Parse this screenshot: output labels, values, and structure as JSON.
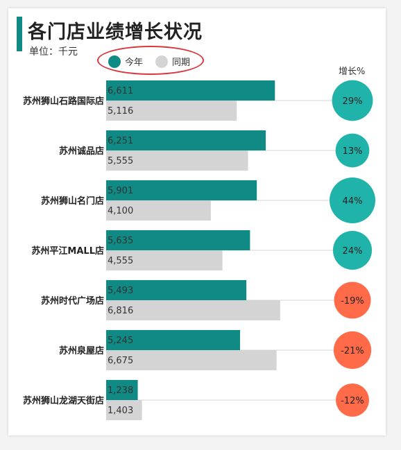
{
  "title": "各门店业绩增长状况",
  "unit": "单位：千元",
  "legend": {
    "current_label": "今年",
    "previous_label": "同期"
  },
  "growth_header": "增长%",
  "colors": {
    "current": "#0f8a84",
    "previous": "#d4d4d4",
    "positive": "#1fb3a9",
    "negative": "#ff6a48",
    "legend_oval": "#d9363e"
  },
  "chart_data": {
    "type": "bar",
    "orientation": "horizontal",
    "categories": [
      "苏州狮山石路国际店",
      "苏州诚品店",
      "苏州狮山名门店",
      "苏州平江MALL店",
      "苏州时代广场店",
      "苏州泉屋店",
      "苏州狮山龙湖天街店"
    ],
    "series": [
      {
        "name": "今年",
        "values": [
          6611,
          6251,
          5901,
          5635,
          5493,
          5245,
          1238
        ]
      },
      {
        "name": "同期",
        "values": [
          5116,
          5555,
          4100,
          4555,
          6816,
          6675,
          1403
        ]
      }
    ],
    "value_labels": {
      "current": [
        "6,611",
        "6,251",
        "5,901",
        "5,635",
        "5,493",
        "5,245",
        "1,238"
      ],
      "previous": [
        "5,116",
        "5,555",
        "4,100",
        "4,555",
        "6,816",
        "6,675",
        "1,403"
      ]
    },
    "growth_pct": [
      29,
      13,
      44,
      24,
      -19,
      -21,
      -12
    ],
    "growth_labels": [
      "29%",
      "13%",
      "44%",
      "24%",
      "-19%",
      "-21%",
      "-12%"
    ],
    "xlim": [
      0,
      7000
    ]
  }
}
